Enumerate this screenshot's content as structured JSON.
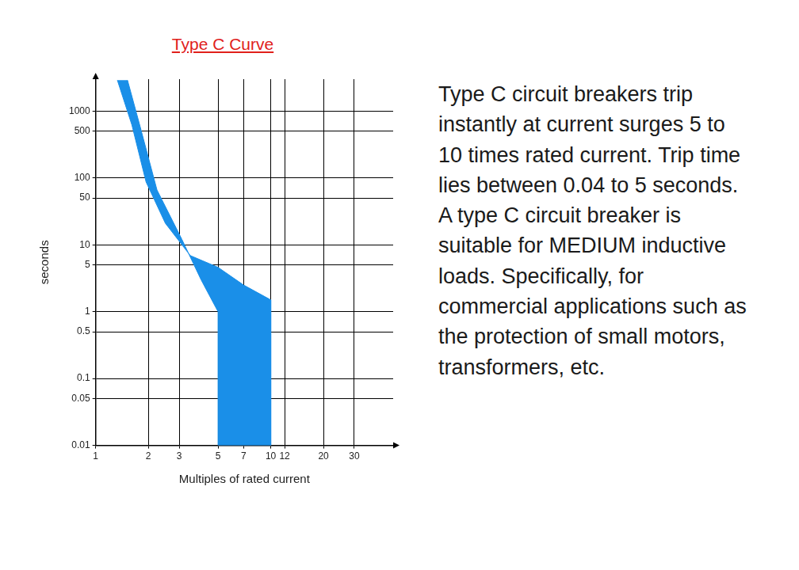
{
  "chart_data": {
    "type": "area",
    "title": "Type C Curve",
    "x_label": "Multiples of rated current",
    "y_label": "seconds",
    "annotation": "Type C circuit breakers trip instantly at current surges 5 to 10 times rated current. Trip time lies between 0.04 to 5 seconds. A type C circuit breaker is suitable for MEDIUM inductive loads. Specifically, for commercial applications such as the protection of small motors, transformers, etc.",
    "series": [
      {
        "x": [
          1.33,
          1.61,
          1.94,
          2.5,
          3.47,
          5,
          7,
          10,
          10
        ],
        "values": [
          2900,
          620,
          87,
          21,
          6.9,
          4.6,
          2.5,
          1.5,
          0.01
        ]
      },
      {
        "x": [
          1.52,
          1.79,
          2.24,
          3.11,
          4,
          5,
          5,
          10
        ],
        "values": [
          2900,
          600,
          66,
          12,
          3,
          1,
          0.01,
          0.01
        ]
      }
    ],
    "color": "#1a8fe8",
    "log": true,
    "grid": true,
    "xlim": [
      1,
      50
    ],
    "xticks": [
      1,
      2,
      3,
      5,
      7,
      10,
      12,
      20,
      30
    ],
    "ylim": [
      0.01,
      3000
    ],
    "yticks": [
      0.01,
      0.05,
      0.1,
      0.5,
      1,
      5,
      10,
      50,
      100,
      500,
      1000
    ]
  }
}
